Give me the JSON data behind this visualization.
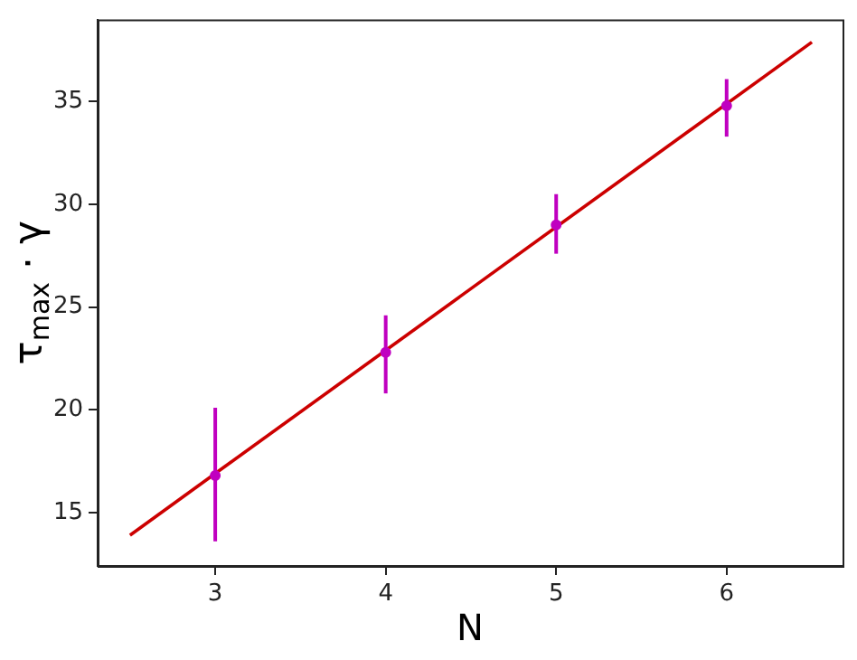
{
  "chart_data": {
    "type": "scatter",
    "xlabel": "N",
    "ylabel": "τ$_{max}$ · γ",
    "xlim": [
      2.31,
      6.68
    ],
    "ylim": [
      12.4,
      39.0
    ],
    "xticks": [
      3,
      4,
      5,
      6
    ],
    "yticks": [
      15,
      20,
      25,
      30,
      35
    ],
    "grid": false,
    "legend": false,
    "series": [
      {
        "color": "#c000c0",
        "marker": "circle",
        "x": [
          3,
          4,
          5,
          6
        ],
        "values": [
          16.8,
          22.8,
          29.0,
          34.8
        ],
        "errors": [
          [
            13.6,
            20.1
          ],
          [
            20.8,
            24.6
          ],
          [
            27.6,
            30.5
          ],
          [
            33.3,
            36.1
          ]
        ]
      },
      {
        "type": "line",
        "color": "#cc0000",
        "marker": "none",
        "x": [
          2.5,
          6.5
        ],
        "values": [
          13.9,
          37.9
        ]
      }
    ]
  }
}
